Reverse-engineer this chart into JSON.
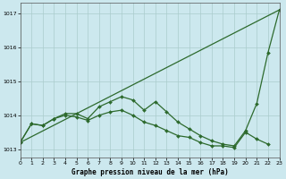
{
  "title": "Graphe pression niveau de la mer (hPa)",
  "background_color": "#cce8ee",
  "grid_color": "#aacccc",
  "line_color": "#2d6a2d",
  "xlim": [
    0,
    23
  ],
  "ylim": [
    1012.75,
    1017.3
  ],
  "ytick_positions": [
    1013,
    1014,
    1015,
    1016,
    1017
  ],
  "ytick_labels": [
    "1013",
    "1014",
    "1015",
    "1016",
    "1017"
  ],
  "xtick_positions": [
    0,
    1,
    2,
    3,
    4,
    5,
    6,
    7,
    8,
    9,
    10,
    11,
    12,
    13,
    14,
    15,
    16,
    17,
    18,
    19,
    20,
    21,
    22,
    23
  ],
  "xtick_labels": [
    "0",
    "1",
    "2",
    "3",
    "4",
    "5",
    "6",
    "7",
    "8",
    "9",
    "10",
    "11",
    "12",
    "13",
    "14",
    "15",
    "16",
    "17",
    "18",
    "19",
    "20",
    "21",
    "22",
    "23"
  ],
  "series": [
    {
      "x": [
        0,
        23
      ],
      "y": [
        1013.2,
        1017.1
      ],
      "marker": null,
      "markersize": 0,
      "linewidth": 0.9
    },
    {
      "x": [
        0,
        1,
        2,
        3,
        4,
        5,
        6,
        7,
        8,
        9,
        10,
        11,
        12,
        13,
        14,
        15,
        16,
        17,
        18,
        19,
        20,
        21,
        22,
        23
      ],
      "y": [
        1013.2,
        1013.75,
        1013.7,
        1013.9,
        1014.0,
        1013.95,
        1013.85,
        1014.0,
        1014.1,
        1014.15,
        1014.0,
        1013.8,
        1013.7,
        1013.55,
        1013.4,
        1013.35,
        1013.2,
        1013.1,
        1013.1,
        1013.05,
        1013.5,
        1013.3,
        1013.15,
        null
      ],
      "marker": "D",
      "markersize": 2.0,
      "linewidth": 0.9
    },
    {
      "x": [
        0,
        1,
        2,
        3,
        4,
        5,
        6,
        7,
        8,
        9,
        10,
        11,
        12,
        13,
        14,
        15,
        16,
        17,
        18,
        19,
        20,
        21,
        22,
        23
      ],
      "y": [
        1013.2,
        1013.75,
        1013.7,
        1013.9,
        1014.05,
        1014.05,
        1013.9,
        1014.25,
        1014.4,
        1014.55,
        1014.45,
        1014.15,
        1014.4,
        1014.1,
        1013.8,
        1013.6,
        1013.4,
        1013.25,
        1013.15,
        1013.1,
        1013.55,
        1014.35,
        1015.85,
        1017.1
      ],
      "marker": "D",
      "markersize": 2.0,
      "linewidth": 0.9
    }
  ],
  "title_fontsize": 5.5,
  "tick_fontsize": 4.5,
  "title_fontweight": "bold"
}
